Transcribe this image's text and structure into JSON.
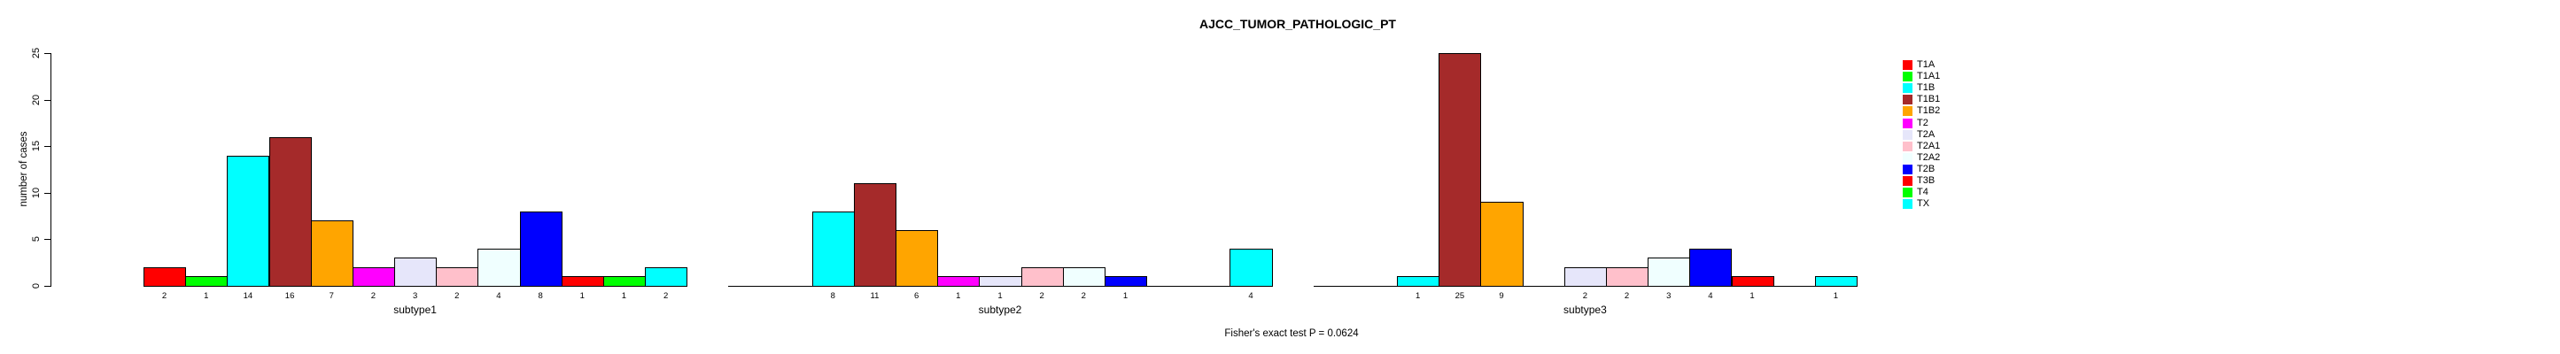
{
  "title": "AJCC_TUMOR_PATHOLOGIC_PT",
  "y_axis": {
    "label": "number of cases",
    "ticks": [
      0,
      5,
      10,
      15,
      20,
      25
    ]
  },
  "footer": "Fisher's exact test P = 0.0624",
  "chart_data": {
    "type": "bar",
    "title": "AJCC_TUMOR_PATHOLOGIC_PT",
    "xlabel": "",
    "ylabel": "number of cases",
    "ylim": [
      0,
      25
    ],
    "yticks": [
      0,
      5,
      10,
      15,
      20,
      25
    ],
    "grid": false,
    "legend_position": "right",
    "bar_value_labels": true,
    "categories": [
      "T1A",
      "T1A1",
      "T1B",
      "T1B1",
      "T1B2",
      "T2",
      "T2A",
      "T2A1",
      "T2A2",
      "T2B",
      "T3B",
      "T4",
      "TX"
    ],
    "palette": [
      "#FF0000",
      "#00FF00",
      "#00FFFF",
      "#A52A2A",
      "#FFA500",
      "#FF00FF",
      "#E6E6FA",
      "#FFC0CB",
      "#F0FFFF",
      "#0000FF",
      "#FF0000",
      "#00FF00",
      "#00FFFF"
    ],
    "groups": [
      {
        "label": "subtype1",
        "values": [
          2,
          1,
          14,
          16,
          7,
          2,
          3,
          2,
          4,
          8,
          1,
          1,
          2
        ]
      },
      {
        "label": "subtype2",
        "values": [
          0,
          0,
          8,
          11,
          6,
          1,
          1,
          2,
          2,
          1,
          0,
          0,
          4
        ]
      },
      {
        "label": "subtype3",
        "values": [
          0,
          0,
          1,
          25,
          9,
          0,
          2,
          2,
          3,
          4,
          1,
          0,
          1
        ]
      }
    ],
    "annotation": "Fisher's exact test P = 0.0624"
  }
}
